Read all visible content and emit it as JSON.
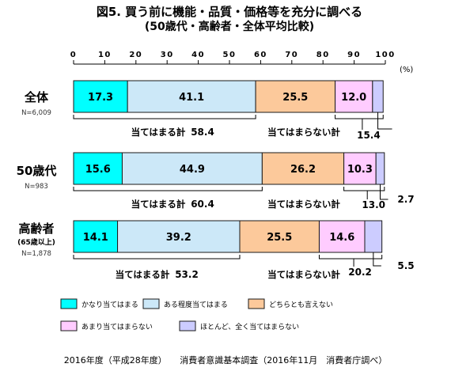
{
  "header": {
    "title_line1": "図5. 買う前に機能・品質・価格等を充分に調べる",
    "title_line2": "(50歳代・高齢者・全体平均比較)"
  },
  "footer": {
    "source": "2016年度（平成28年度）　　消費者意識基本調査（2016年11月　消費者庁調べ）"
  },
  "chart_data": {
    "type": "bar",
    "orientation": "horizontal-stacked-100",
    "title": "図5. 買う前に機能・品質・価格等を充分に調べる",
    "subtitle": "(50歳代・高齢者・全体平均比較)",
    "unit_label": "(%)",
    "xlim": [
      0,
      100
    ],
    "x_ticks": [
      0,
      10,
      20,
      30,
      40,
      50,
      60,
      70,
      80,
      90,
      100
    ],
    "x_tick_labels": [
      "0",
      "10",
      "20",
      "30",
      "40",
      "50",
      "60",
      "70",
      "80",
      "90",
      "100"
    ],
    "grid": false,
    "legend_position": "bottom",
    "categories": [
      {
        "name": "全体",
        "n_label": "N=6,009"
      },
      {
        "name": "50歳代",
        "n_label": "N=983"
      },
      {
        "name": "高齢者",
        "sub_label": "(65歳以上)",
        "n_label": "N=1,878"
      }
    ],
    "series": [
      {
        "name": "かなり当てはまる",
        "color": "#00ffff",
        "values": [
          17.3,
          15.6,
          14.1
        ],
        "labels": [
          "17.3",
          "15.6",
          "14.1"
        ]
      },
      {
        "name": "ある程度当てはまる",
        "color": "#cce8f8",
        "values": [
          41.1,
          44.9,
          39.2
        ],
        "labels": [
          "41.1",
          "44.9",
          "39.2"
        ]
      },
      {
        "name": "どちらとも言えない",
        "color": "#fcc99b",
        "values": [
          25.5,
          26.2,
          25.5
        ],
        "labels": [
          "25.5",
          "26.2",
          "25.5"
        ]
      },
      {
        "name": "あまり当てはまらない",
        "color": "#ffccff",
        "values": [
          12.0,
          10.3,
          14.6
        ],
        "labels": [
          "12.0",
          "10.3",
          "14.6"
        ]
      },
      {
        "name": "ほとんど、全く当てはまらない",
        "color": "#ccccff",
        "values": [
          3.4,
          2.7,
          5.5
        ],
        "labels": [
          "",
          "",
          ""
        ]
      }
    ],
    "summaries": [
      {
        "agree_label": "当てはまる計",
        "agree_value": "58.4",
        "disagree_label": "当てはまらない計",
        "disagree_value": "15.4",
        "minor_value": ""
      },
      {
        "agree_label": "当てはまる計",
        "agree_value": "60.4",
        "disagree_label": "当てはまらない計",
        "disagree_value": "13.0",
        "minor_value": "2.7"
      },
      {
        "agree_label": "当てはまる計",
        "agree_value": "53.2",
        "disagree_label": "当てはまらない計",
        "disagree_value": "20.2",
        "minor_value": "5.5"
      }
    ]
  }
}
